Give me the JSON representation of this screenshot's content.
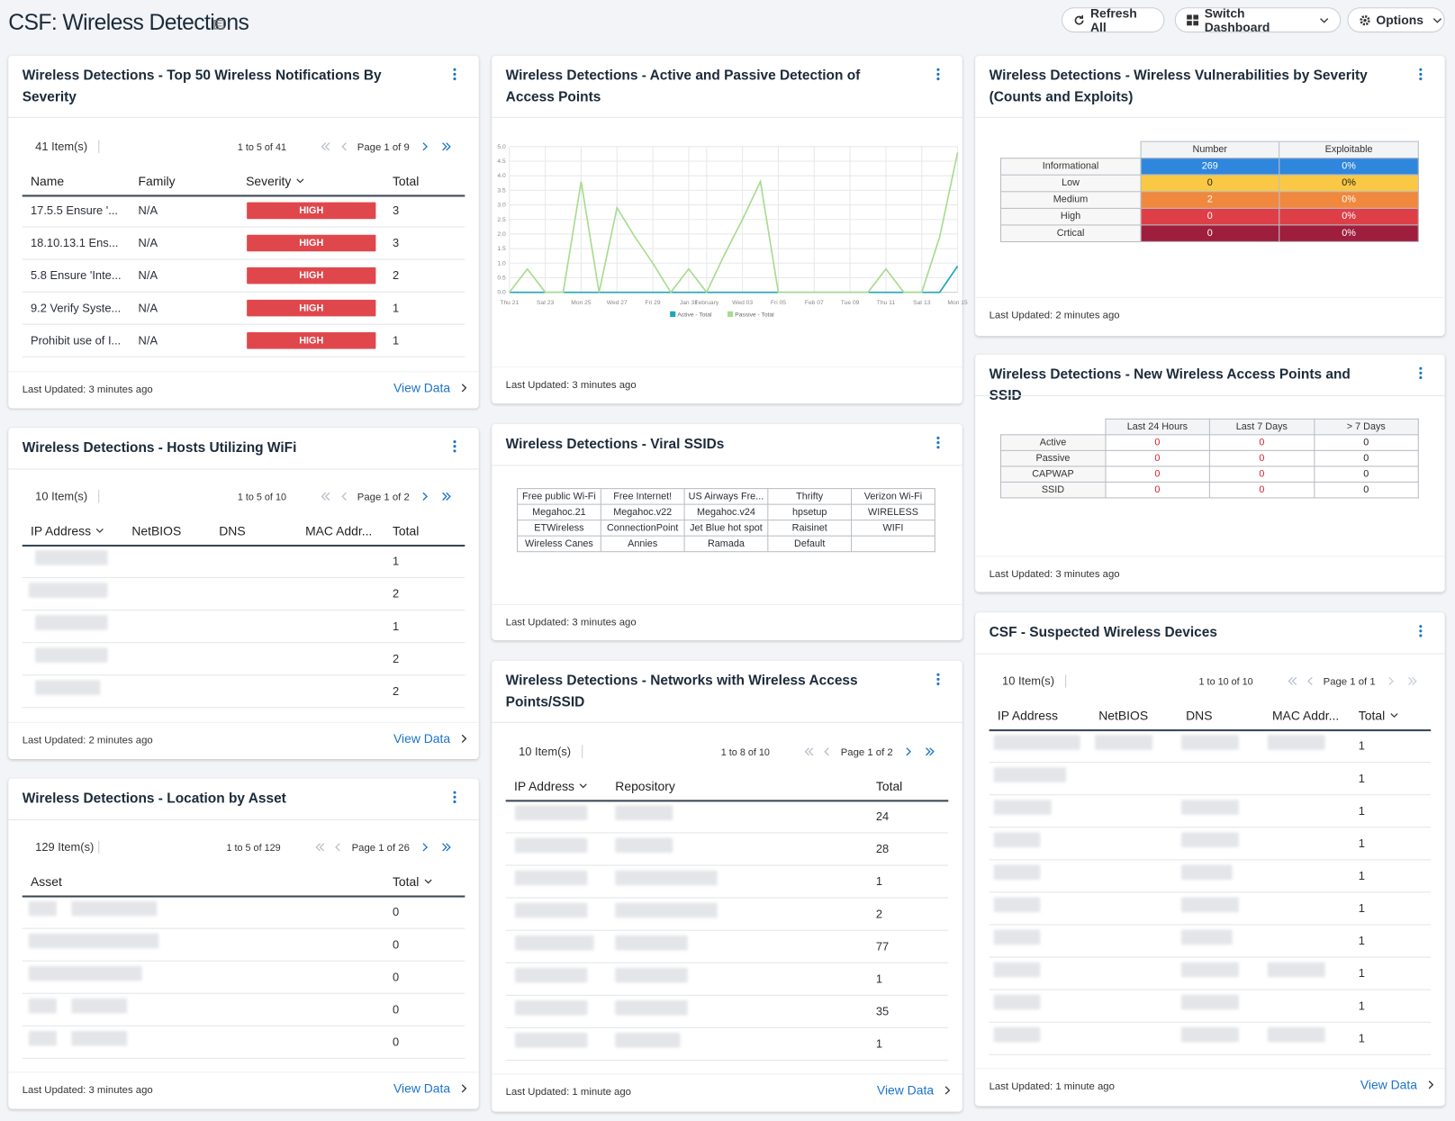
{
  "header": {
    "title": "CSF: Wireless Detections",
    "refresh": "Refresh All",
    "switch": "Switch Dashboard",
    "options": "Options"
  },
  "widgets": {
    "top50": {
      "title": "Wireless Detections - Top 50 Wireless Notifications By Severity",
      "items": "41 Item(s)",
      "range": "1 to 5 of 41",
      "page": "Page 1 of 9",
      "columns": [
        "Name",
        "Family",
        "Severity",
        "Total"
      ],
      "rows": [
        [
          "17.5.5 Ensure '...",
          "N/A",
          "HIGH",
          3
        ],
        [
          "18.10.13.1 Ens...",
          "N/A",
          "HIGH",
          3
        ],
        [
          "5.8 Ensure 'Inte...",
          "N/A",
          "HIGH",
          2
        ],
        [
          "9.2 Verify Syste...",
          "N/A",
          "HIGH",
          1
        ],
        [
          "Prohibit use of I...",
          "N/A",
          "HIGH",
          1
        ]
      ],
      "updated": "Last Updated: 3 minutes ago",
      "link": "View Data"
    },
    "detection": {
      "title": "Wireless Detections - Active and Passive Detection of Access Points",
      "chart": {
        "type": "line",
        "categories": [
          "Thu 21",
          null,
          "Sat 23",
          null,
          "Mon 25",
          null,
          "Wed 27",
          null,
          "Fri 29",
          null,
          "Jan 31",
          "February",
          null,
          "Wed 03",
          null,
          "Fri 05",
          null,
          "Feb 07",
          null,
          "Tue 09",
          null,
          "Thu 11",
          null,
          "Sat 13",
          null,
          "Mon 15"
        ],
        "series": [
          {
            "name": "Active - Total",
            "color": "#1fa5b8",
            "values": [
              0,
              0,
              0,
              0,
              0,
              0,
              0,
              0,
              0,
              0,
              0,
              0,
              0,
              0,
              0,
              0,
              0,
              0,
              0,
              0,
              0,
              0,
              0,
              0,
              0,
              0.9
            ]
          },
          {
            "name": "Passive - Total",
            "color": "#a8db8f",
            "values": [
              0,
              0.8,
              0,
              0,
              3.8,
              0,
              2.9,
              1.9,
              1,
              0,
              0.8,
              0,
              1.3,
              2.5,
              3.8,
              0,
              0,
              0,
              0,
              0,
              0,
              0.8,
              0,
              0,
              1.9,
              4.8
            ]
          }
        ],
        "ylim": [
          0,
          5
        ],
        "yticks": [
          {
            "value": 0,
            "label": "0.0"
          },
          {
            "value": 0.5,
            "label": "0.5"
          },
          {
            "value": 1,
            "label": "1.0"
          },
          {
            "value": 1.5,
            "label": "1.5"
          },
          {
            "value": 2,
            "label": "2.0"
          },
          {
            "value": 2.5,
            "label": "2.5"
          },
          {
            "value": 3,
            "label": "3.0"
          },
          {
            "value": 3.5,
            "label": "3.5"
          },
          {
            "value": 4,
            "label": "4.0"
          },
          {
            "value": 4.5,
            "label": "4.5"
          },
          {
            "value": 5,
            "label": "5.0"
          }
        ],
        "grid": true,
        "legend": "bottom"
      },
      "updated": "Last Updated: 3 minutes ago"
    },
    "vulns": {
      "title": "Wireless Detections - Wireless Vulnerabilities by Severity (Counts and Exploits)",
      "columns": [
        "Number",
        "Exploitable"
      ],
      "rows": [
        {
          "label": "Informational",
          "number": 269,
          "exploitable": "0%"
        },
        {
          "label": "Low",
          "number": 0,
          "exploitable": "0%"
        },
        {
          "label": "Medium",
          "number": 2,
          "exploitable": "0%"
        },
        {
          "label": "High",
          "number": 0,
          "exploitable": "0%"
        },
        {
          "label": "Crtical",
          "number": 0,
          "exploitable": "0%"
        }
      ],
      "updated": "Last Updated: 2 minutes ago"
    },
    "hosts": {
      "title": "Wireless Detections - Hosts Utilizing WiFi",
      "items": "10 Item(s)",
      "range": "1 to 5 of 10",
      "page": "Page 1 of 2",
      "columns": [
        "IP Address",
        "NetBIOS",
        "DNS",
        "MAC Addr...",
        "Total"
      ],
      "totals": [
        1,
        2,
        1,
        2,
        2
      ],
      "updated": "Last Updated: 2 minutes ago",
      "link": "View Data"
    },
    "viral": {
      "title": "Wireless Detections - Viral SSIDs",
      "cells": [
        [
          "Free public Wi-Fi",
          "Free Internet!",
          "US Airways Fre...",
          "Thrifty",
          "Verizon Wi-Fi"
        ],
        [
          "Megahoc.21",
          "Megahoc.v22",
          "Megahoc.v24",
          "hpsetup",
          "WIRELESS"
        ],
        [
          "ETWireless",
          "ConnectionPoint",
          "Jet Blue hot spot",
          "Raisinet",
          "WIFI"
        ],
        [
          "Wireless Canes",
          "Annies",
          "Ramada",
          "Default"
        ]
      ],
      "updated": "Last Updated: 3 minutes ago"
    },
    "newap": {
      "title": "Wireless Detections - New Wireless Access Points and SSID",
      "columns": [
        "Last 24 Hours",
        "Last 7 Days",
        "> 7 Days"
      ],
      "rows": [
        {
          "label": "Active",
          "values": [
            0,
            0,
            0
          ]
        },
        {
          "label": "Passive",
          "values": [
            0,
            0,
            0
          ]
        },
        {
          "label": "CAPWAP",
          "values": [
            0,
            0,
            0
          ]
        },
        {
          "label": "SSID",
          "values": [
            0,
            0,
            0
          ]
        }
      ],
      "updated": "Last Updated: 3 minutes ago"
    },
    "location": {
      "title": "Wireless Detections - Location by Asset",
      "items": "129 Item(s)",
      "range": "1 to 5 of 129",
      "page": "Page 1 of 26",
      "columns": [
        "Asset",
        "Total"
      ],
      "totals": [
        0,
        0,
        0,
        0,
        0
      ],
      "updated": "Last Updated: 3 minutes ago",
      "link": "View Data"
    },
    "networks": {
      "title": "Wireless Detections - Networks with Wireless Access Points/SSID",
      "items": "10 Item(s)",
      "range": "1 to 8 of 10",
      "page": "Page 1 of 2",
      "columns": [
        "IP Address",
        "Repository",
        "Total"
      ],
      "totals": [
        24,
        28,
        1,
        2,
        77,
        1,
        35,
        1
      ],
      "updated": "Last Updated: 1 minute ago",
      "link": "View Data"
    },
    "suspected": {
      "title": "CSF - Suspected Wireless Devices",
      "items": "10 Item(s)",
      "range": "1 to 10 of 10",
      "page": "Page 1 of 1",
      "columns": [
        "IP Address",
        "NetBIOS",
        "DNS",
        "MAC Addr...",
        "Total"
      ],
      "totals": [
        1,
        1,
        1,
        1,
        1,
        1,
        1,
        1,
        1,
        1
      ],
      "updated": "Last Updated: 1 minute ago",
      "link": "View Data"
    }
  }
}
